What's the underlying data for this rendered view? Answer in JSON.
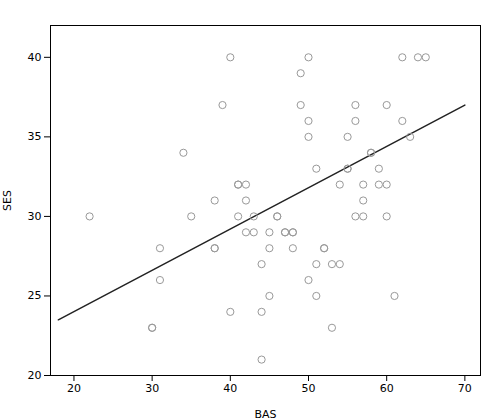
{
  "chart_data": {
    "type": "scatter",
    "xlabel": "BAS",
    "ylabel": "SES",
    "xlim": [
      17,
      72
    ],
    "ylim": [
      20,
      42
    ],
    "xticks": [
      20,
      30,
      40,
      50,
      60,
      70
    ],
    "yticks": [
      20,
      25,
      30,
      35,
      40
    ],
    "grid": false,
    "series": [
      {
        "type": "scatter",
        "marker": "circle",
        "color": "#999999",
        "x": [
          22,
          30,
          30,
          31,
          31,
          34,
          35,
          38,
          38,
          38,
          39,
          40,
          40,
          41,
          41,
          41,
          42,
          42,
          42,
          43,
          43,
          44,
          44,
          44,
          45,
          45,
          45,
          46,
          46,
          47,
          47,
          48,
          48,
          48,
          49,
          49,
          50,
          50,
          50,
          50,
          51,
          51,
          51,
          52,
          52,
          53,
          53,
          54,
          54,
          55,
          55,
          55,
          56,
          56,
          56,
          57,
          57,
          57,
          58,
          58,
          59,
          59,
          60,
          60,
          60,
          61,
          62,
          62,
          63,
          64,
          65
        ],
        "values": [
          30,
          23,
          23,
          26,
          28,
          34,
          30,
          28,
          28,
          31,
          37,
          40,
          24,
          32,
          32,
          30,
          32,
          31,
          29,
          30,
          29,
          27,
          24,
          21,
          29,
          28,
          25,
          30,
          30,
          29,
          29,
          29,
          29,
          28,
          39,
          37,
          40,
          36,
          35,
          26,
          33,
          27,
          25,
          28,
          28,
          23,
          27,
          32,
          27,
          33,
          33,
          35,
          37,
          36,
          30,
          32,
          31,
          30,
          34,
          34,
          33,
          32,
          30,
          37,
          32,
          25,
          36,
          40,
          35,
          40,
          40
        ]
      },
      {
        "type": "line",
        "line_style": "solid",
        "color": "#222222",
        "x": [
          18,
          70
        ],
        "values": [
          23.5,
          37.0
        ]
      }
    ]
  }
}
